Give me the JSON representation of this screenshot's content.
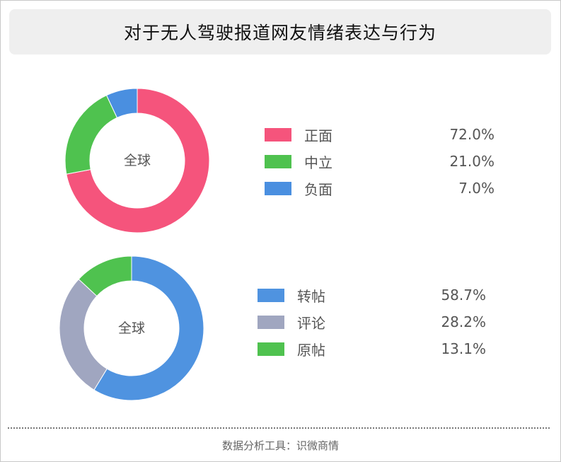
{
  "title": "对于无人驾驶报道网友情绪表达与行为",
  "footer": "数据分析工具：识微商情",
  "chart_data": [
    {
      "type": "pie",
      "center_label": "全球",
      "categories": [
        "正面",
        "中立",
        "负面"
      ],
      "values": [
        72.0,
        21.0,
        7.0
      ],
      "value_labels": [
        "72.0%",
        "21.0%",
        "7.0%"
      ],
      "colors": [
        "#f5547c",
        "#4fc24f",
        "#4a8fe0"
      ]
    },
    {
      "type": "pie",
      "center_label": "全球",
      "categories": [
        "转帖",
        "评论",
        "原帖"
      ],
      "values": [
        58.7,
        28.2,
        13.1
      ],
      "value_labels": [
        "58.7%",
        "28.2%",
        "13.1%"
      ],
      "colors": [
        "#4f93e0",
        "#a0a6c0",
        "#4fc24f"
      ]
    }
  ]
}
